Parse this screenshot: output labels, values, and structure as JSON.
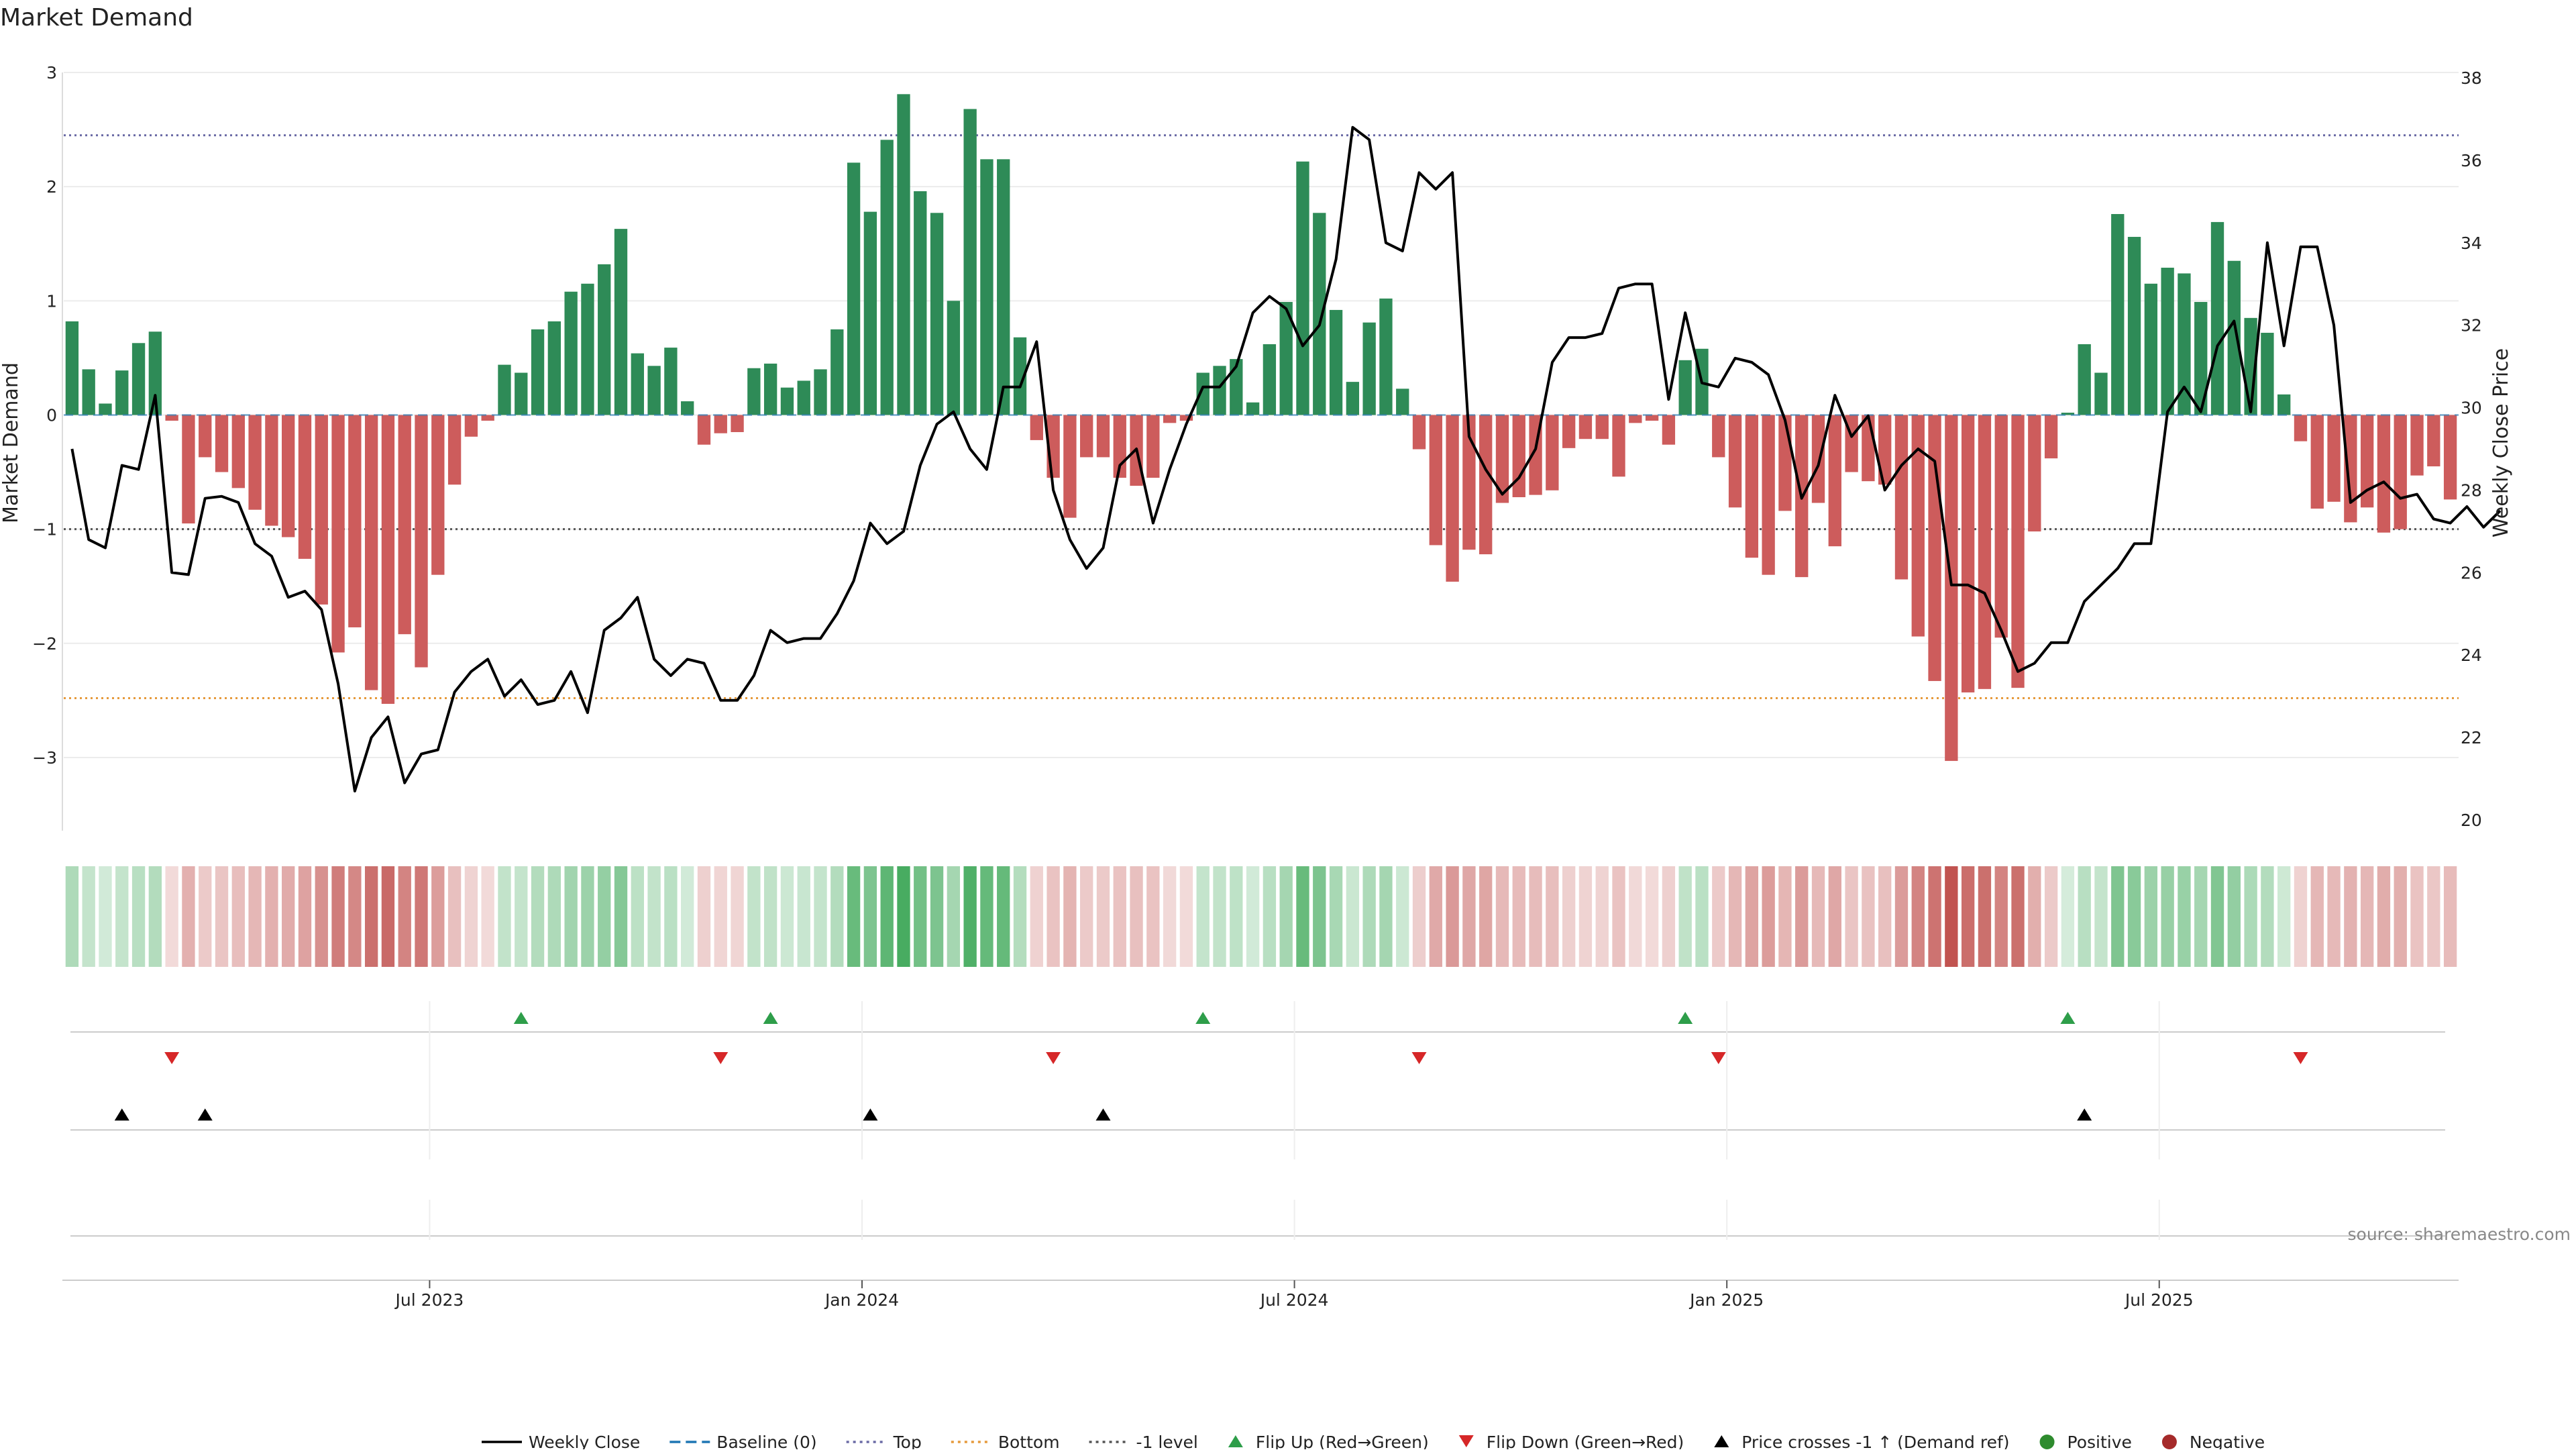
{
  "chart_data": {
    "type": "bar+line",
    "title": "Market Demand",
    "ylabel_left": "Market Demand",
    "ylabel_right": "Weekly Close Price",
    "ylim_left": [
      -3.3,
      3
    ],
    "ylim_right": [
      20,
      38
    ],
    "left_ticks": [
      3,
      2,
      1,
      0,
      -1,
      -2,
      -3
    ],
    "right_ticks": [
      20,
      22,
      24,
      26,
      28,
      30,
      32,
      34,
      36,
      38
    ],
    "x_ticks": [
      "Jul 2023",
      "Jan 2024",
      "Jul 2024",
      "Jan 2025",
      "Jul 2025"
    ],
    "x_tick_weeks": [
      22,
      48,
      74,
      100,
      126
    ],
    "top_level": 2.45,
    "bottom_level": -2.48,
    "minus_one_level": -1,
    "demand": [
      0.82,
      0.4,
      0.1,
      0.39,
      0.63,
      0.73,
      -0.05,
      -0.95,
      -0.37,
      -0.5,
      -0.64,
      -0.83,
      -0.97,
      -1.07,
      -1.26,
      -1.66,
      -2.08,
      -1.86,
      -2.41,
      -2.53,
      -1.92,
      -2.21,
      -1.4,
      -0.61,
      -0.19,
      -0.05,
      0.44,
      0.37,
      0.75,
      0.82,
      1.08,
      1.15,
      1.32,
      1.63,
      0.54,
      0.43,
      0.59,
      0.12,
      -0.26,
      -0.16,
      -0.15,
      0.41,
      0.45,
      0.24,
      0.3,
      0.4,
      0.75,
      2.21,
      1.78,
      2.41,
      2.81,
      1.96,
      1.77,
      1.0,
      2.68,
      2.24,
      2.24,
      0.68,
      -0.22,
      -0.55,
      -0.9,
      -0.37,
      -0.37,
      -0.55,
      -0.62,
      -0.55,
      -0.07,
      -0.05,
      0.37,
      0.43,
      0.49,
      0.11,
      0.62,
      0.99,
      2.22,
      1.77,
      0.92,
      0.29,
      0.81,
      1.02,
      0.23,
      -0.3,
      -1.14,
      -1.46,
      -1.18,
      -1.22,
      -0.77,
      -0.72,
      -0.7,
      -0.66,
      -0.29,
      -0.21,
      -0.21,
      -0.54,
      -0.07,
      -0.05,
      -0.26,
      0.48,
      0.58,
      -0.37,
      -0.81,
      -1.25,
      -1.4,
      -0.84,
      -1.42,
      -0.77,
      -1.15,
      -0.5,
      -0.58,
      -0.61,
      -1.44,
      -1.94,
      -2.33,
      -3.03,
      -2.43,
      -2.4,
      -1.95,
      -2.39,
      -1.02,
      -0.38,
      0.02,
      0.62,
      0.37,
      1.76,
      1.56,
      1.15,
      1.29,
      1.24,
      0.99,
      1.69,
      1.35,
      0.85,
      0.72,
      0.18,
      -0.23,
      -0.82,
      -0.76,
      -0.94,
      -0.81,
      -1.03,
      -1.0,
      -0.53,
      -0.45,
      -0.74
    ],
    "weekly_close": [
      29.0,
      26.8,
      26.6,
      28.6,
      28.5,
      30.3,
      26.0,
      25.95,
      27.8,
      27.85,
      27.7,
      26.7,
      26.4,
      25.4,
      25.55,
      25.1,
      23.3,
      20.7,
      22.0,
      22.5,
      20.9,
      21.6,
      21.7,
      23.1,
      23.6,
      23.9,
      23.0,
      23.4,
      22.8,
      22.9,
      23.6,
      22.6,
      24.6,
      24.9,
      25.4,
      23.9,
      23.5,
      23.9,
      23.8,
      22.9,
      22.9,
      23.5,
      24.6,
      24.3,
      24.4,
      24.4,
      25.0,
      25.8,
      27.2,
      26.7,
      27.0,
      28.6,
      29.6,
      29.9,
      29.0,
      28.5,
      30.5,
      30.5,
      31.6,
      28.0,
      26.8,
      26.1,
      26.6,
      28.6,
      29.0,
      27.2,
      28.5,
      29.6,
      30.5,
      30.5,
      31.0,
      32.3,
      32.7,
      32.4,
      31.5,
      32.0,
      33.6,
      36.8,
      36.5,
      34.0,
      33.8,
      35.7,
      35.3,
      35.7,
      29.3,
      28.5,
      27.9,
      28.3,
      29.0,
      31.1,
      31.7,
      31.7,
      31.8,
      32.9,
      33.0,
      33.0,
      30.2,
      32.3,
      30.6,
      30.5,
      31.2,
      31.1,
      30.8,
      29.7,
      27.8,
      28.6,
      30.3,
      29.3,
      29.8,
      28.0,
      28.6,
      29.0,
      28.7,
      25.7,
      25.7,
      25.5,
      24.6,
      23.6,
      23.8,
      24.3,
      24.3,
      25.3,
      25.7,
      26.1,
      26.7,
      26.7,
      29.9,
      30.5,
      29.9,
      31.5,
      32.1,
      29.9,
      34.0,
      31.5,
      33.9,
      33.9,
      32.0,
      27.7,
      28.0,
      28.2,
      27.8,
      27.9,
      27.3,
      27.2,
      27.6,
      27.1,
      27.5
    ],
    "flip_up_weeks": [
      27,
      42,
      68,
      97,
      120
    ],
    "flip_down_weeks": [
      6,
      39,
      59,
      81,
      99,
      134
    ],
    "price_cross_weeks": [
      3,
      8,
      48,
      62,
      121
    ],
    "legend": [
      {
        "label": "Weekly Close",
        "kind": "solid-line",
        "color": "#000000"
      },
      {
        "label": "Baseline (0)",
        "kind": "dash-line",
        "color": "#1f77b4"
      },
      {
        "label": "Top",
        "kind": "dot-line",
        "color": "#6b6ba5"
      },
      {
        "label": "Bottom",
        "kind": "dot-line",
        "color": "#e69a3c"
      },
      {
        "label": "-1 level",
        "kind": "dot-line",
        "color": "#555555"
      },
      {
        "label": "Flip Up (Red→Green)",
        "kind": "triangle-up",
        "color": "#2e9e4a"
      },
      {
        "label": "Flip Down (Green→Red)",
        "kind": "triangle-down",
        "color": "#d62728"
      },
      {
        "label": "Price crosses -1 ↑ (Demand ref)",
        "kind": "triangle-up",
        "color": "#000000"
      },
      {
        "label": "Positive",
        "kind": "dot",
        "color": "#2e8b2e"
      },
      {
        "label": "Negative",
        "kind": "dot",
        "color": "#a52a2a"
      }
    ],
    "source": "source: sharemaestro.com",
    "colors": {
      "positive_bar": "#2e8b57",
      "negative_bar": "#cd5c5c",
      "strip_positive": "#3aa655",
      "strip_negative": "#c0504d",
      "price_line": "#000000",
      "top_line": "#6b6ba5",
      "bottom_line": "#e69a3c",
      "minus_one_line": "#555555",
      "flip_up": "#2e9e4a",
      "flip_down": "#d62728",
      "price_cross": "#000000"
    }
  }
}
